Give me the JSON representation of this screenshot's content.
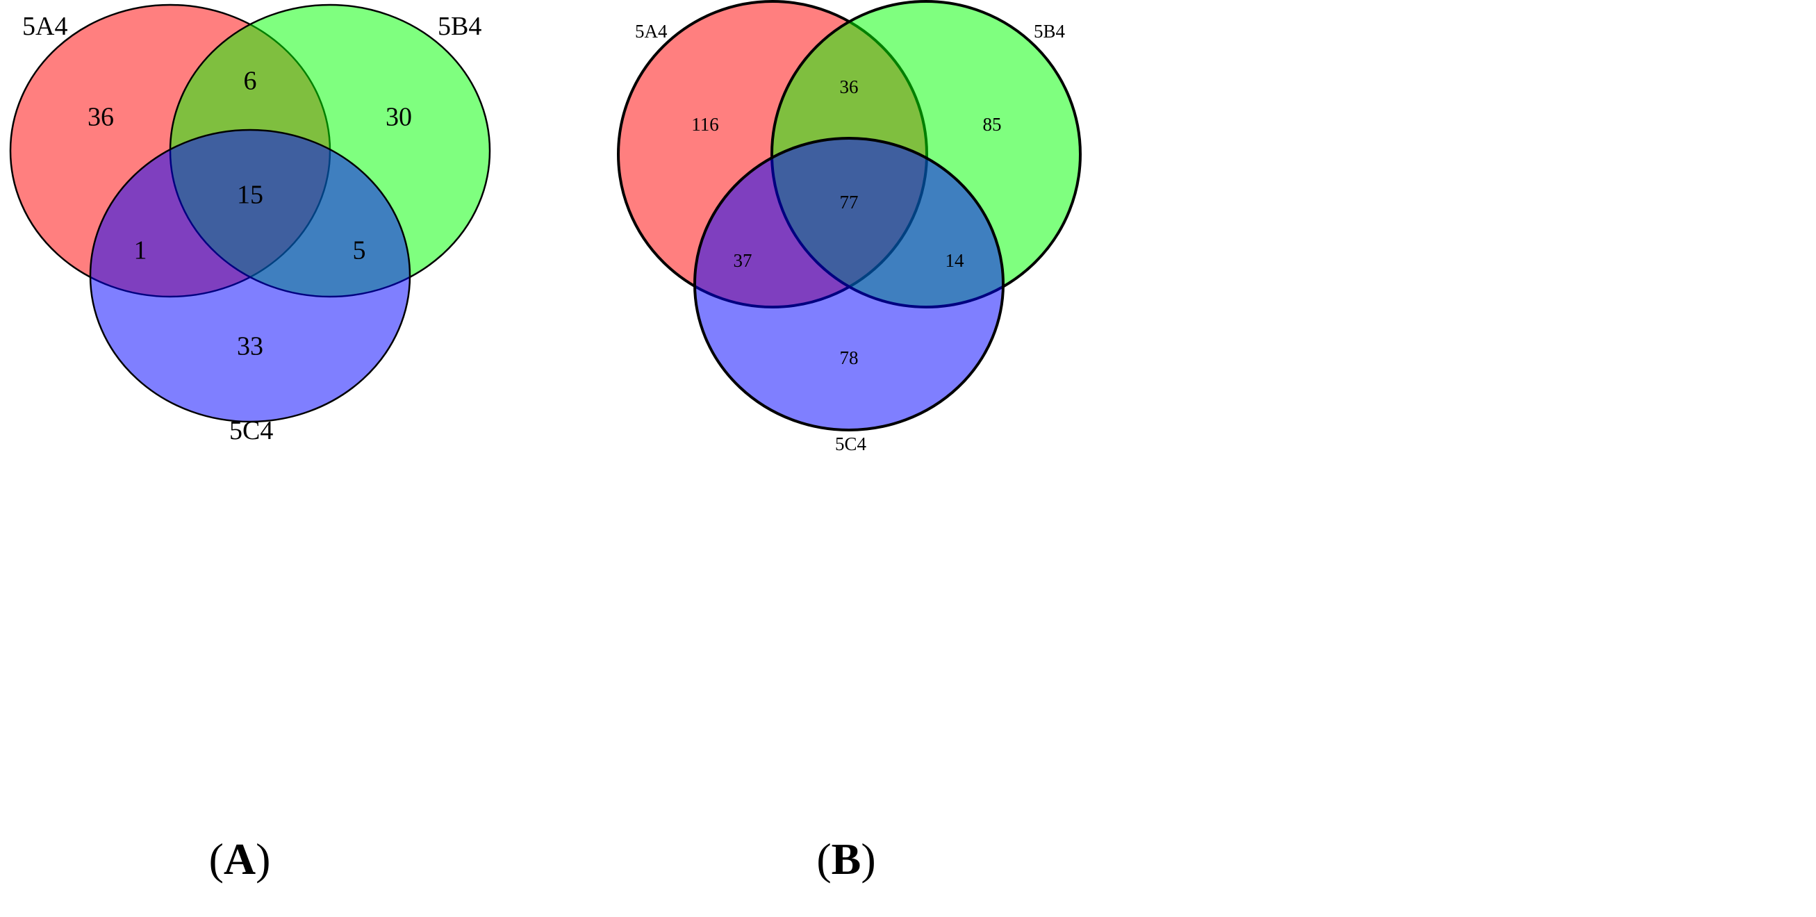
{
  "panels": [
    {
      "id": "A",
      "label": "A",
      "sets": [
        "5A4",
        "5B4",
        "5C4"
      ],
      "regions": {
        "a_only": "36",
        "b_only": "30",
        "c_only": "33",
        "ab_only": "6",
        "ac_only": "1",
        "bc_only": "5",
        "abc": "15"
      }
    },
    {
      "id": "B",
      "label": "B",
      "sets": [
        "5A4",
        "5B4",
        "5C4"
      ],
      "regions": {
        "a_only": "116",
        "b_only": "85",
        "c_only": "78",
        "ab_only": "36",
        "ac_only": "37",
        "bc_only": "14",
        "abc": "77"
      }
    }
  ],
  "colors": {
    "set_a": "#ff0000",
    "set_b": "#00ff00",
    "set_c": "#0000ff",
    "fill_opacity": 0.5,
    "stroke": "#000000"
  }
}
